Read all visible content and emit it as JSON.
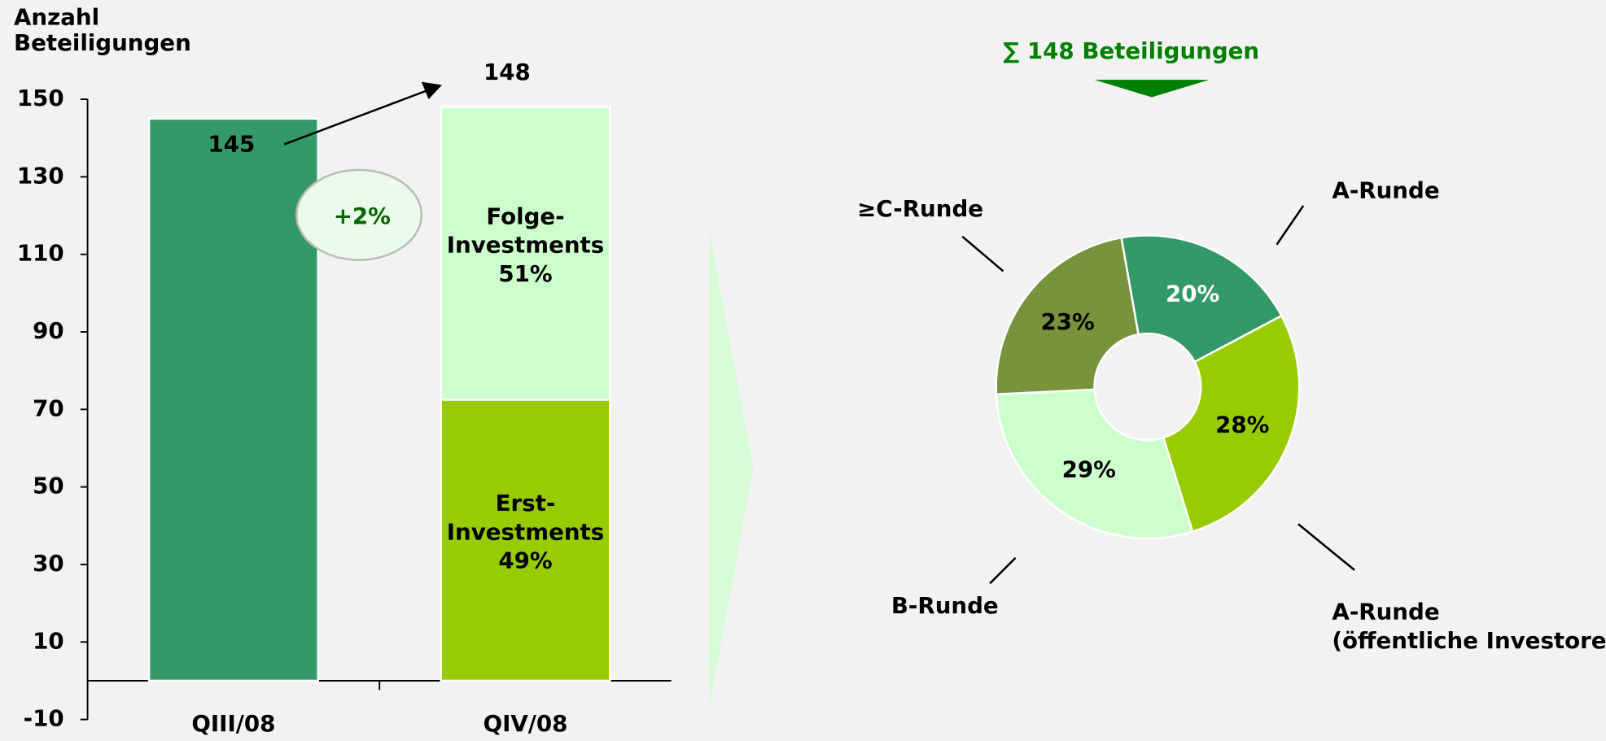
{
  "chart_data": [
    {
      "type": "bar",
      "y_label": [
        "Anzahl",
        "Beteiligungen"
      ],
      "categories": [
        "QIII/08",
        "QIV/08"
      ],
      "series": [
        {
          "color": "#339966",
          "values": [
            145,
            null
          ]
        },
        {
          "name": "Erst-Investments",
          "color": "#99cc00",
          "values": [
            null,
            72.5
          ],
          "shares": [
            null,
            "49%"
          ]
        },
        {
          "name": "Folge-Investments",
          "color": "#ccffcc",
          "values": [
            null,
            75.5
          ],
          "shares": [
            null,
            "51%"
          ]
        }
      ],
      "totals": [
        null,
        148
      ],
      "annotation": "+2%",
      "ylim": [
        -10,
        150
      ],
      "yticks": [
        -10,
        10,
        30,
        50,
        70,
        90,
        110,
        130,
        150
      ]
    },
    {
      "type": "pie",
      "title": "∑ 148 Beteiligungen",
      "start_angle": -10,
      "categories": [
        [
          "A-Runde"
        ],
        [
          "A-Runde",
          "(öffentliche Investoren)"
        ],
        [
          "B-Runde"
        ],
        [
          "≥C-Runde"
        ]
      ],
      "values": [
        20,
        28,
        29,
        23
      ],
      "value_labels": [
        "20%",
        "28%",
        "29%",
        "23%"
      ],
      "colors": [
        "#339966",
        "#99cc00",
        "#ccffcc",
        "#77933c"
      ]
    }
  ]
}
